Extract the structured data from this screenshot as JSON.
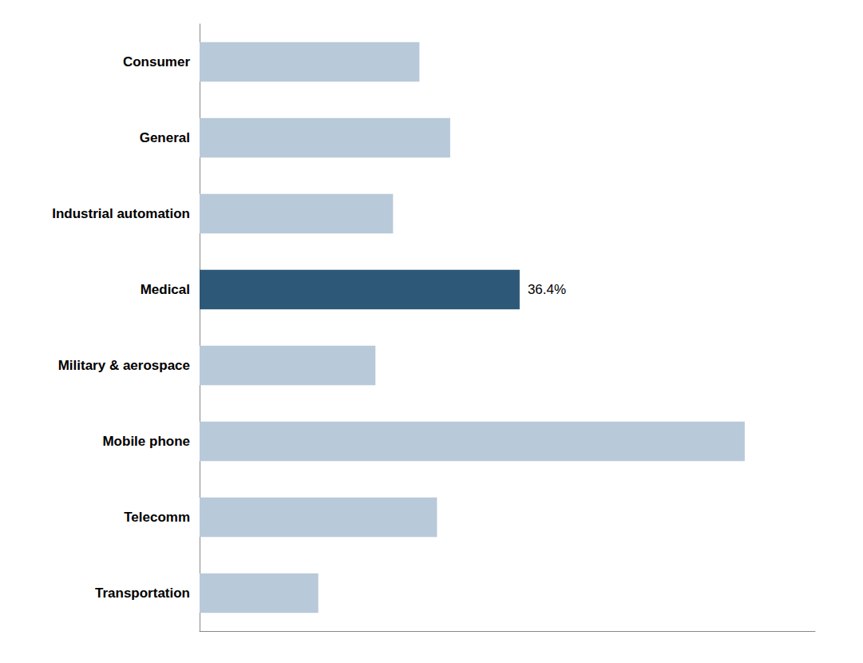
{
  "chart_data": {
    "type": "bar",
    "orientation": "horizontal",
    "categories": [
      "Transportation",
      "Telecomm",
      "Mobile phone",
      "Military & aerospace",
      "Medical",
      "Industrial automation",
      "General",
      "Consumer"
    ],
    "values": [
      13.5,
      27.0,
      62.0,
      20.0,
      36.4,
      22.0,
      28.5,
      25.0
    ],
    "colors": [
      "#b8c9d9",
      "#b8c9d9",
      "#b8c9d9",
      "#b8c9d9",
      "#2d5878",
      "#b8c9d9",
      "#b8c9d9",
      "#b8c9d9"
    ],
    "xlim": [
      0,
      70
    ],
    "tick_labels": "y",
    "grid": false,
    "annotations": [
      {
        "text": "36.4%",
        "category": "Medical"
      }
    ]
  }
}
